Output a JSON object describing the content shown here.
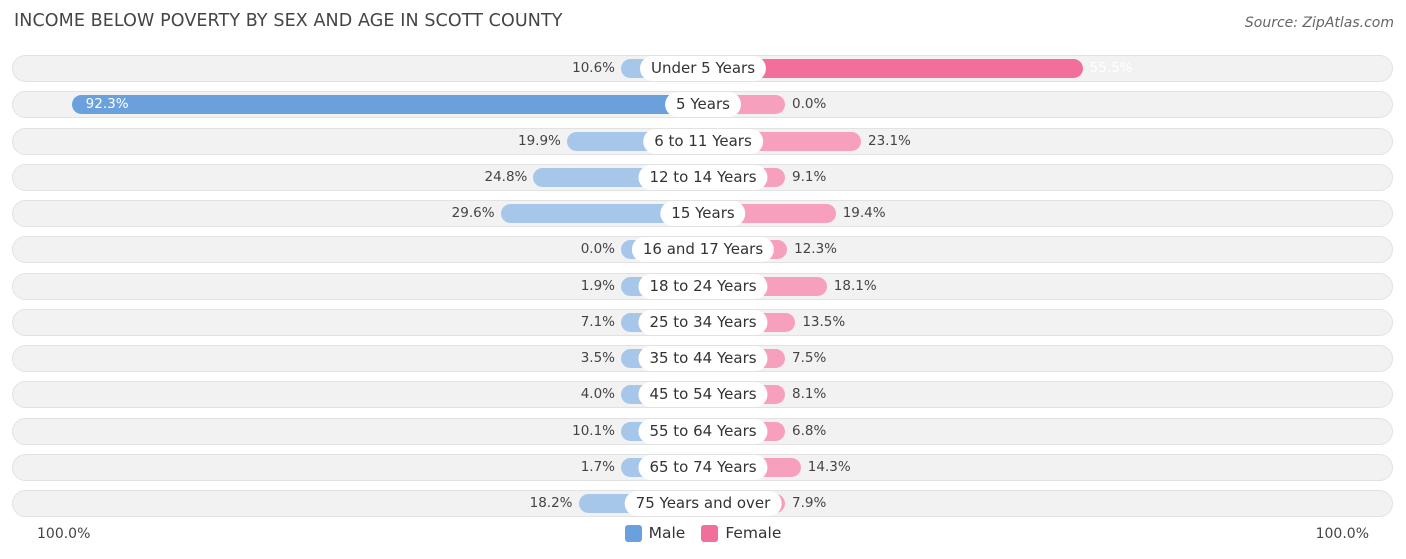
{
  "title": "INCOME BELOW POVERTY BY SEX AND AGE IN SCOTT COUNTY",
  "source": "Source: ZipAtlas.com",
  "colors": {
    "male": "#a6c6ea",
    "male_strong": "#6aa1dd",
    "female": "#f7a0bd",
    "female_strong": "#f26e9b"
  },
  "chart_data": {
    "type": "bar",
    "orientation": "horizontal-diverging",
    "title": "INCOME BELOW POVERTY BY SEX AND AGE IN SCOTT COUNTY",
    "categories": [
      "Under 5 Years",
      "5 Years",
      "6 to 11 Years",
      "12 to 14 Years",
      "15 Years",
      "16 and 17 Years",
      "18 to 24 Years",
      "25 to 34 Years",
      "35 to 44 Years",
      "45 to 54 Years",
      "55 to 64 Years",
      "65 to 74 Years",
      "75 Years and over"
    ],
    "series": [
      {
        "name": "Male",
        "values": [
          10.6,
          92.3,
          19.9,
          24.8,
          29.6,
          0.0,
          1.9,
          7.1,
          3.5,
          4.0,
          10.1,
          1.7,
          18.2
        ],
        "labels": [
          "10.6%",
          "92.3%",
          "19.9%",
          "24.8%",
          "29.6%",
          "0.0%",
          "1.9%",
          "7.1%",
          "3.5%",
          "4.0%",
          "10.1%",
          "1.7%",
          "18.2%"
        ]
      },
      {
        "name": "Female",
        "values": [
          55.5,
          0.0,
          23.1,
          9.1,
          19.4,
          12.3,
          18.1,
          13.5,
          7.5,
          8.1,
          6.8,
          14.3,
          7.9
        ],
        "labels": [
          "55.5%",
          "0.0%",
          "23.1%",
          "9.1%",
          "19.4%",
          "12.3%",
          "18.1%",
          "13.5%",
          "7.5%",
          "8.1%",
          "6.8%",
          "14.3%",
          "7.9%"
        ]
      }
    ],
    "xlim": [
      -100,
      100
    ],
    "axis_left_label": "100.0%",
    "axis_right_label": "100.0%",
    "legend": [
      "Male",
      "Female"
    ],
    "legend_position": "bottom-center"
  }
}
